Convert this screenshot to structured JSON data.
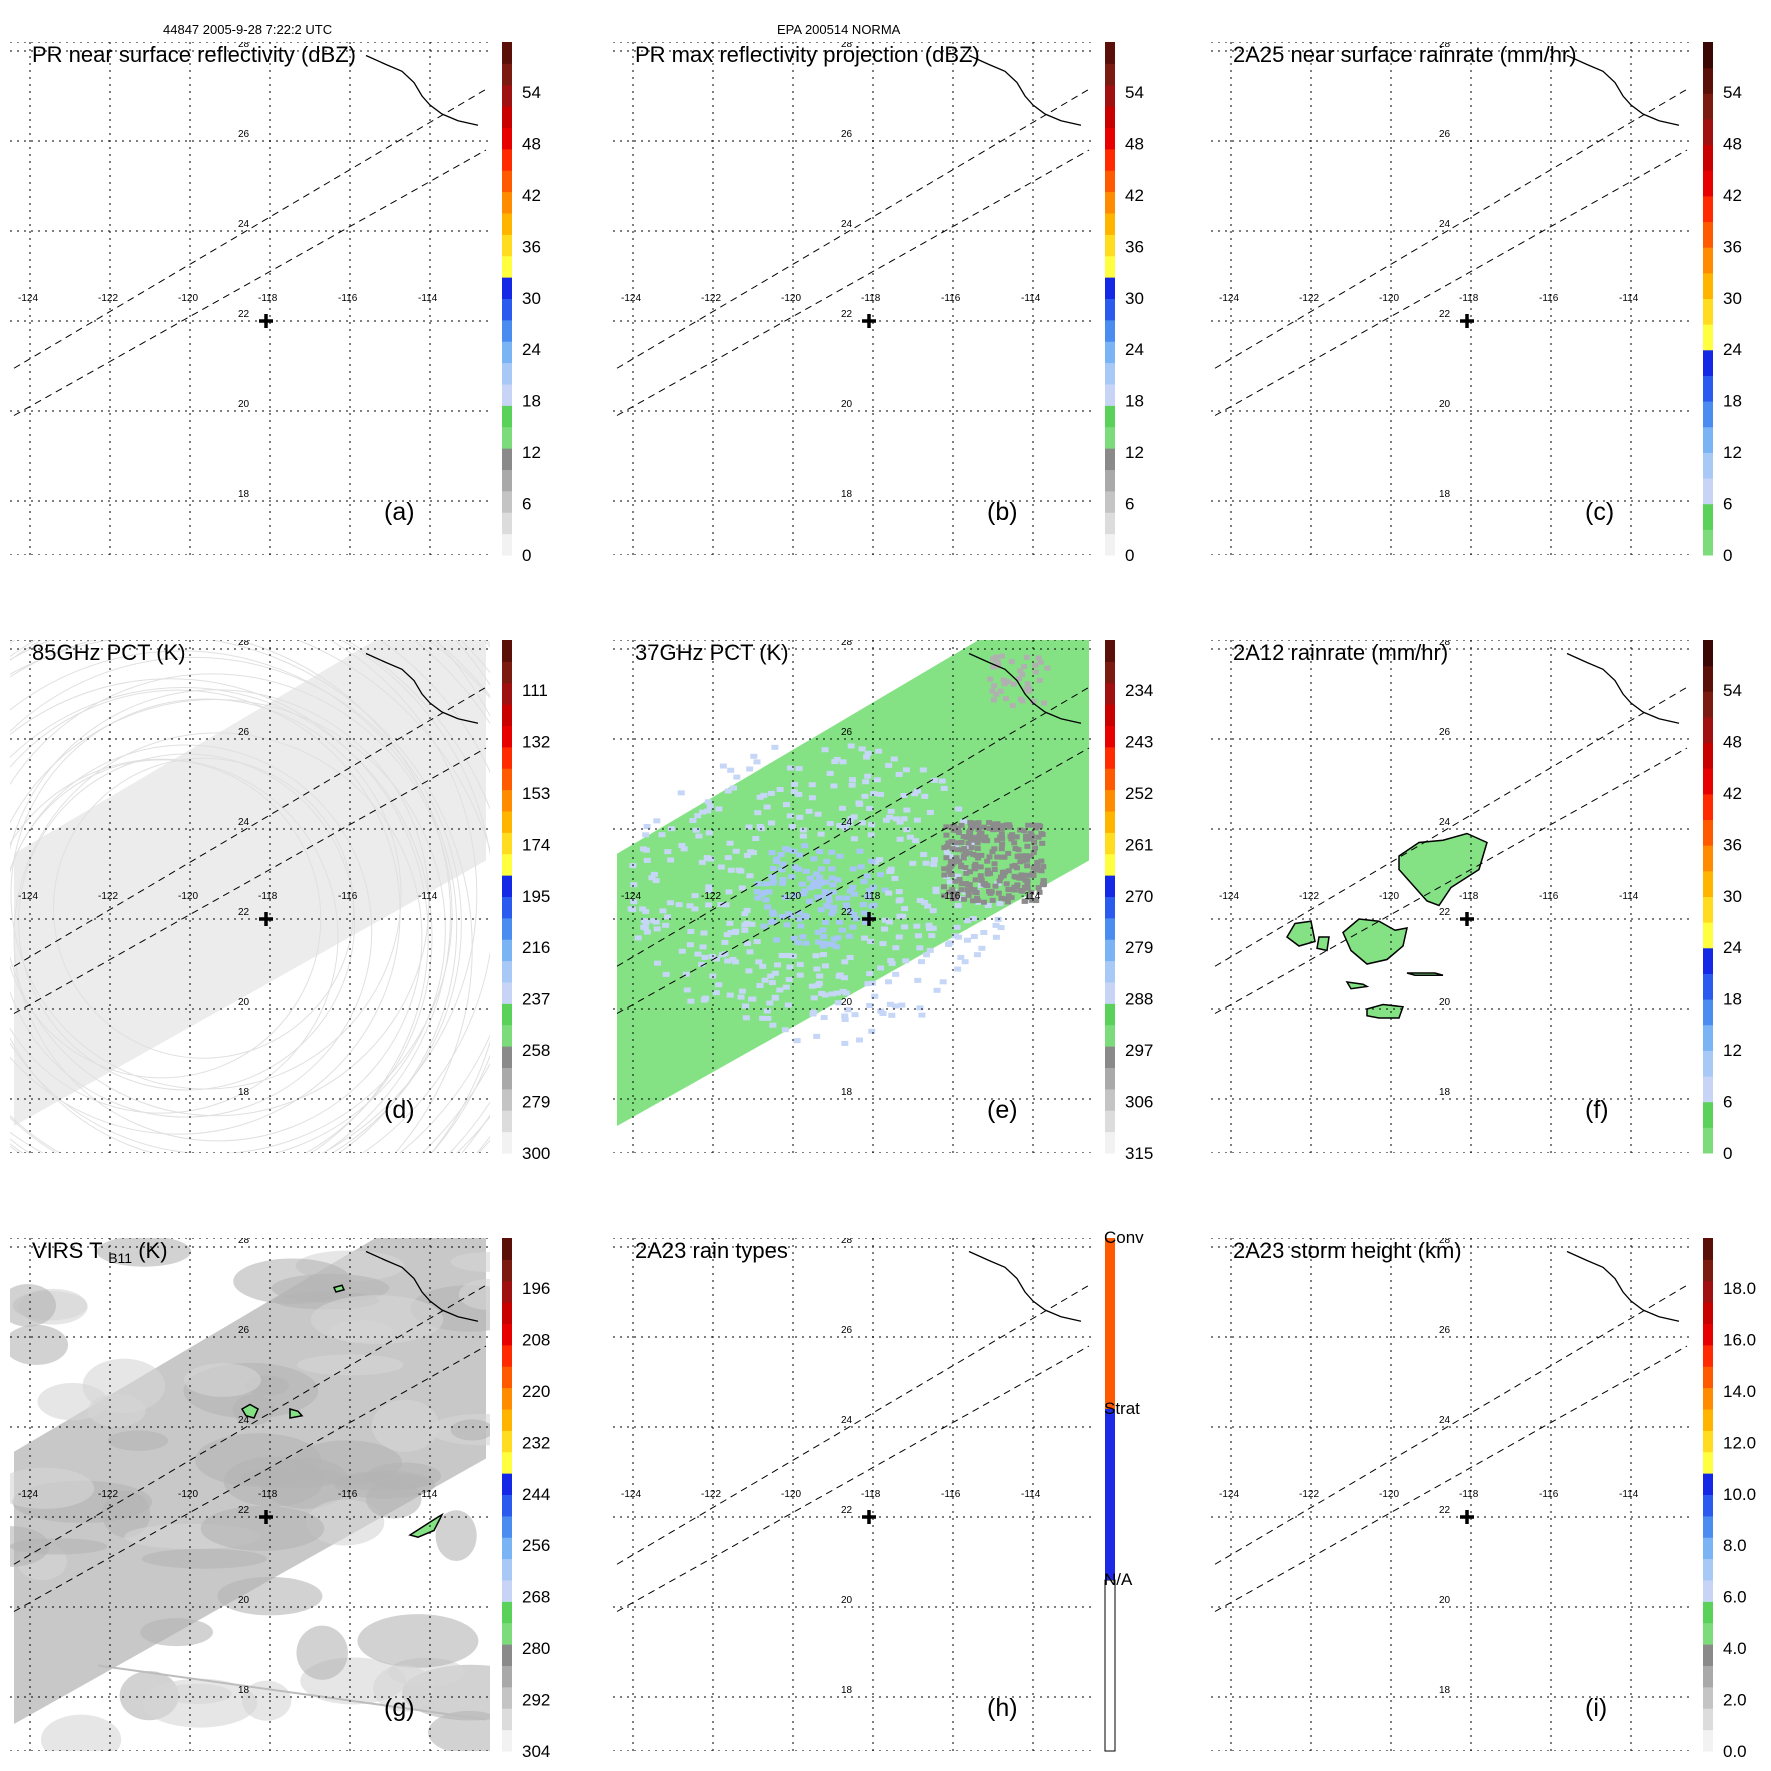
{
  "header": {
    "left": "44847 2005-9-28 7:22:2 UTC",
    "center": "EPA 200514 NORMA"
  },
  "colors": {
    "rainbow": [
      "#f2f2f2",
      "#dcdcdc",
      "#c4c4c4",
      "#a9a9a9",
      "#8a8a8a",
      "#7cdc7c",
      "#5ad25a",
      "#c8d4f5",
      "#a8c8f5",
      "#7ab4f5",
      "#4a8cf0",
      "#2a5aee",
      "#1428e6",
      "#ffff40",
      "#ffdc20",
      "#ffb400",
      "#ff8c00",
      "#ff5a00",
      "#ff2a00",
      "#e60000",
      "#c80000",
      "#a01010",
      "#7a1a10",
      "#5a1008"
    ],
    "intense_rainbow": [
      "#7cdc7c",
      "#5ad25a",
      "#c8d4f5",
      "#a8c8f5",
      "#7ab4f5",
      "#4a8cf0",
      "#2a5aee",
      "#1428e6",
      "#ffff40",
      "#ffdc20",
      "#ffb400",
      "#ff8c00",
      "#ff5a00",
      "#ff2a00",
      "#e60000",
      "#c80000",
      "#a01010",
      "#7a1a10",
      "#5a1008",
      "#3a0804"
    ],
    "rain_types": [
      "#ffffff",
      "#1c2ae6",
      "#ff5a00"
    ],
    "land_fill": "#84e284",
    "light_blue": "#c6d6f6",
    "blue": "#a8c6f5",
    "gray": "#8c8c8c",
    "satellite_gray": "#c8c8c8"
  },
  "map": {
    "lon_ticks": [
      "-124",
      "-122",
      "-120",
      "-118",
      "-116",
      "-114"
    ],
    "lat_ticks": [
      "28",
      "26",
      "24",
      "22",
      "20",
      "18"
    ],
    "lon_range": [
      -124.5,
      -112.5
    ],
    "lat_range": [
      16.8,
      28.2
    ],
    "storm_center": {
      "lon": -118.1,
      "lat": 22.0
    },
    "swath_edges": [
      [
        [
          -124.4,
          19.9
        ],
        [
          -112.6,
          25.8
        ]
      ],
      [
        [
          -124.4,
          20.95
        ],
        [
          -112.6,
          27.15
        ]
      ]
    ],
    "coastline": [
      [
        -115.6,
        27.9
      ],
      [
        -115.1,
        27.7
      ],
      [
        -114.7,
        27.55
      ],
      [
        -114.4,
        27.3
      ],
      [
        -114.2,
        27.0
      ],
      [
        -114.0,
        26.8
      ],
      [
        -113.7,
        26.6
      ],
      [
        -113.3,
        26.45
      ],
      [
        -112.8,
        26.35
      ]
    ]
  },
  "panels": [
    {
      "id": "a",
      "letter": "(a)",
      "title": "PR near surface reflectivity (dBZ)",
      "scale": "rainbow",
      "ticks": [
        "54",
        "48",
        "42",
        "36",
        "30",
        "24",
        "18",
        "12",
        "6",
        "0"
      ],
      "rain_fields": [],
      "fill": "none"
    },
    {
      "id": "b",
      "letter": "(b)",
      "title": "PR max reflectivity projection (dBZ)",
      "scale": "rainbow",
      "ticks": [
        "54",
        "48",
        "42",
        "36",
        "30",
        "24",
        "18",
        "12",
        "6",
        "0"
      ],
      "rain_fields": [],
      "fill": "none"
    },
    {
      "id": "c",
      "letter": "(c)",
      "title": "2A25 near surface rainrate (mm/hr)",
      "scale": "intense_rainbow",
      "ticks": [
        "54",
        "48",
        "42",
        "36",
        "30",
        "24",
        "18",
        "12",
        "6",
        "0"
      ],
      "rain_fields": [],
      "fill": "none"
    },
    {
      "id": "d",
      "letter": "(d)",
      "title": "85GHz PCT (K)",
      "scale": "rainbow",
      "ticks": [
        "111",
        "132",
        "153",
        "174",
        "195",
        "216",
        "237",
        "258",
        "279",
        "300"
      ],
      "rain_fields": [],
      "fill": "satellite_light"
    },
    {
      "id": "e",
      "letter": "(e)",
      "title": "37GHz PCT (K)",
      "scale": "rainbow",
      "ticks": [
        "234",
        "243",
        "252",
        "261",
        "270",
        "279",
        "288",
        "297",
        "306",
        "315"
      ],
      "rain_fields": [],
      "fill": "microwave37"
    },
    {
      "id": "f",
      "letter": "(f)",
      "title": "2A12 rainrate (mm/hr)",
      "scale": "intense_rainbow",
      "ticks": [
        "54",
        "48",
        "42",
        "36",
        "30",
        "24",
        "18",
        "12",
        "6",
        "0"
      ],
      "rain_fields": [
        [
          [
            -119.8,
            23.4
          ],
          [
            -119.3,
            23.7
          ],
          [
            -118.7,
            23.75
          ],
          [
            -118.1,
            23.9
          ],
          [
            -117.6,
            23.7
          ],
          [
            -117.8,
            23.1
          ],
          [
            -118.5,
            22.7
          ],
          [
            -118.8,
            22.3
          ],
          [
            -119.1,
            22.4
          ],
          [
            -119.5,
            22.8
          ],
          [
            -119.8,
            23.1
          ]
        ],
        [
          [
            -120.8,
            22.0
          ],
          [
            -120.3,
            21.95
          ],
          [
            -119.9,
            21.75
          ],
          [
            -119.6,
            21.8
          ],
          [
            -119.7,
            21.4
          ],
          [
            -120.1,
            21.1
          ],
          [
            -120.6,
            21.0
          ],
          [
            -121.0,
            21.3
          ],
          [
            -121.2,
            21.7
          ]
        ],
        [
          [
            -122.4,
            21.9
          ],
          [
            -122.0,
            21.95
          ],
          [
            -121.9,
            21.5
          ],
          [
            -122.3,
            21.4
          ],
          [
            -122.6,
            21.6
          ]
        ],
        [
          [
            -121.8,
            21.6
          ],
          [
            -121.55,
            21.6
          ],
          [
            -121.6,
            21.3
          ],
          [
            -121.85,
            21.35
          ]
        ],
        [
          [
            -121.1,
            20.6
          ],
          [
            -120.7,
            20.55
          ],
          [
            -120.6,
            20.5
          ],
          [
            -121.0,
            20.45
          ]
        ],
        [
          [
            -119.6,
            20.8
          ],
          [
            -118.9,
            20.8
          ],
          [
            -118.7,
            20.75
          ],
          [
            -119.4,
            20.75
          ]
        ],
        [
          [
            -120.6,
            20.0
          ],
          [
            -120.2,
            20.1
          ],
          [
            -119.7,
            20.05
          ],
          [
            -119.8,
            19.8
          ],
          [
            -120.3,
            19.8
          ],
          [
            -120.6,
            19.85
          ]
        ]
      ],
      "fill": "none"
    },
    {
      "id": "g",
      "letter": "(g)",
      "title": "VIRS T (K)",
      "title_sub": "B11",
      "scale": "rainbow",
      "ticks": [
        "196",
        "208",
        "220",
        "232",
        "244",
        "256",
        "268",
        "280",
        "292",
        "304"
      ],
      "rain_fields": [
        [
          [
            -118.7,
            24.4
          ],
          [
            -118.5,
            24.5
          ],
          [
            -118.3,
            24.4
          ],
          [
            -118.4,
            24.2
          ],
          [
            -118.6,
            24.25
          ]
        ],
        [
          [
            -117.5,
            24.4
          ],
          [
            -117.3,
            24.35
          ],
          [
            -117.2,
            24.25
          ],
          [
            -117.5,
            24.2
          ]
        ],
        [
          [
            -114.5,
            21.6
          ],
          [
            -113.8,
            22.0
          ],
          [
            -113.7,
            22.05
          ],
          [
            -113.9,
            21.7
          ],
          [
            -114.3,
            21.55
          ]
        ],
        [
          [
            -116.4,
            27.1
          ],
          [
            -116.2,
            27.15
          ],
          [
            -116.15,
            27.05
          ],
          [
            -116.35,
            27.0
          ]
        ]
      ],
      "fill": "satellite_virs"
    },
    {
      "id": "h",
      "letter": "(h)",
      "title": "2A23 rain types",
      "scale": "rain_types",
      "ticks": [
        "Conv",
        "Strat",
        "N/A"
      ],
      "rain_fields": [],
      "fill": "none"
    },
    {
      "id": "i",
      "letter": "(i)",
      "title": "2A23 storm height (km)",
      "scale": "rainbow",
      "ticks": [
        "18.0",
        "16.0",
        "14.0",
        "12.0",
        "10.0",
        "8.0",
        "6.0",
        "4.0",
        "2.0",
        "0.0"
      ],
      "rain_fields": [],
      "fill": "none"
    }
  ]
}
